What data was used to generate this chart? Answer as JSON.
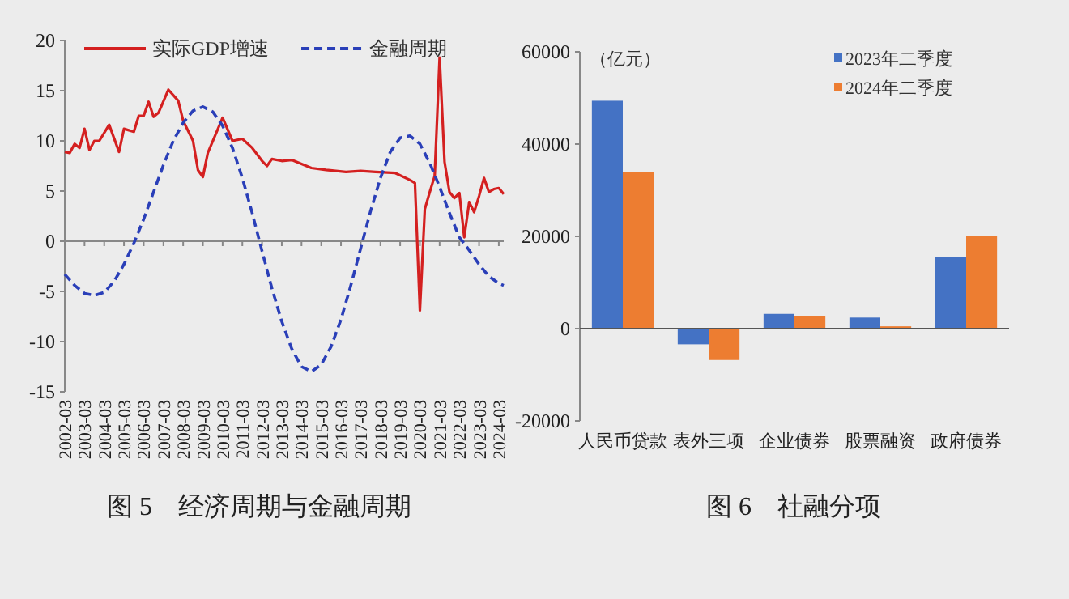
{
  "chart_data": [
    {
      "type": "line",
      "title": "图 5　经济周期与金融周期",
      "xlim": [
        "2002-03",
        "2024-06"
      ],
      "xticks": [
        "2002-03",
        "2003-03",
        "2004-03",
        "2005-03",
        "2006-03",
        "2007-03",
        "2008-03",
        "2009-03",
        "2010-03",
        "2011-03",
        "2012-03",
        "2013-03",
        "2014-03",
        "2015-03",
        "2016-03",
        "2017-03",
        "2018-03",
        "2019-03",
        "2020-03",
        "2021-03",
        "2022-03",
        "2023-03",
        "2024-03"
      ],
      "ylim": [
        -15,
        20
      ],
      "yticks": [
        -15,
        -10,
        -5,
        0,
        5,
        10,
        15,
        20
      ],
      "legend": "top left",
      "marker": "none",
      "series": [
        {
          "name": "实际GDP增速",
          "color": "#d42020",
          "line_style": "solid",
          "x": [
            "2002-03",
            "2002-06",
            "2002-09",
            "2002-12",
            "2003-03",
            "2003-06",
            "2003-09",
            "2003-12",
            "2004-06",
            "2004-12",
            "2005-03",
            "2005-09",
            "2005-12",
            "2006-03",
            "2006-06",
            "2006-09",
            "2006-12",
            "2007-06",
            "2007-12",
            "2008-03",
            "2008-09",
            "2008-12",
            "2009-03",
            "2009-06",
            "2010-03",
            "2010-09",
            "2011-03",
            "2011-09",
            "2012-03",
            "2012-06",
            "2012-09",
            "2013-03",
            "2013-09",
            "2014-03",
            "2014-09",
            "2015-06",
            "2016-06",
            "2017-03",
            "2017-12",
            "2018-12",
            "2019-09",
            "2019-12",
            "2020-03",
            "2020-06",
            "2020-09",
            "2020-12",
            "2021-03",
            "2021-06",
            "2021-09",
            "2021-12",
            "2022-03",
            "2022-06",
            "2022-09",
            "2022-12",
            "2023-03",
            "2023-06",
            "2023-09",
            "2023-12",
            "2024-03",
            "2024-06"
          ],
          "values": [
            8.9,
            8.8,
            9.7,
            9.3,
            11.2,
            9.1,
            10.0,
            10.0,
            11.6,
            8.9,
            11.2,
            10.9,
            12.5,
            12.5,
            13.9,
            12.4,
            12.8,
            15.1,
            14.0,
            12.0,
            10.0,
            7.1,
            6.4,
            8.8,
            12.3,
            10.0,
            10.2,
            9.3,
            8.0,
            7.5,
            8.2,
            8.0,
            8.1,
            7.7,
            7.3,
            7.1,
            6.9,
            7.0,
            6.9,
            6.8,
            6.1,
            5.8,
            -6.9,
            3.2,
            4.9,
            6.5,
            18.3,
            7.9,
            4.9,
            4.3,
            4.8,
            0.4,
            3.9,
            2.9,
            4.5,
            6.3,
            4.9,
            5.2,
            5.3,
            4.7
          ]
        },
        {
          "name": "金融周期",
          "color": "#2a3fb8",
          "line_style": "dashed",
          "x": [
            "2002-03",
            "2002-09",
            "2003-03",
            "2003-09",
            "2004-03",
            "2004-09",
            "2005-03",
            "2005-09",
            "2006-03",
            "2006-09",
            "2007-03",
            "2007-09",
            "2008-03",
            "2008-09",
            "2009-03",
            "2009-09",
            "2010-03",
            "2010-09",
            "2011-03",
            "2011-09",
            "2012-03",
            "2012-09",
            "2013-03",
            "2013-09",
            "2014-03",
            "2014-09",
            "2015-03",
            "2015-09",
            "2016-03",
            "2016-09",
            "2017-03",
            "2017-09",
            "2018-03",
            "2018-09",
            "2019-03",
            "2019-09",
            "2020-03",
            "2020-09",
            "2021-03",
            "2021-09",
            "2022-03",
            "2022-09",
            "2023-03",
            "2023-09",
            "2024-03",
            "2024-06"
          ],
          "values": [
            -3.3,
            -4.4,
            -5.2,
            -5.4,
            -5.1,
            -4.0,
            -2.3,
            -0.2,
            2.2,
            4.9,
            7.6,
            10.0,
            11.8,
            13.0,
            13.4,
            12.9,
            11.5,
            9.3,
            6.3,
            2.8,
            -1.0,
            -4.7,
            -8.0,
            -10.7,
            -12.5,
            -13.0,
            -12.3,
            -10.5,
            -7.8,
            -4.4,
            -0.7,
            3.0,
            6.3,
            8.9,
            10.3,
            10.5,
            9.7,
            7.8,
            5.4,
            2.8,
            0.4,
            -0.9,
            -2.3,
            -3.5,
            -4.2,
            -4.4
          ]
        }
      ]
    },
    {
      "type": "bar",
      "title": "图 6　社融分项",
      "ylabel": "（亿元）",
      "categories": [
        "人民币贷款",
        "表外三项",
        "企业债券",
        "股票融资",
        "政府债券"
      ],
      "ylim": [
        -20000,
        60000
      ],
      "yticks": [
        -20000,
        0,
        20000,
        40000,
        60000
      ],
      "legend": "top right",
      "series": [
        {
          "name": "2023年二季度",
          "color": "#4472c4",
          "values": [
            49400,
            -3400,
            3200,
            2400,
            15500
          ]
        },
        {
          "name": "2024年二季度",
          "color": "#ed7d31",
          "values": [
            33900,
            -6800,
            2800,
            500,
            20000
          ]
        }
      ]
    }
  ]
}
